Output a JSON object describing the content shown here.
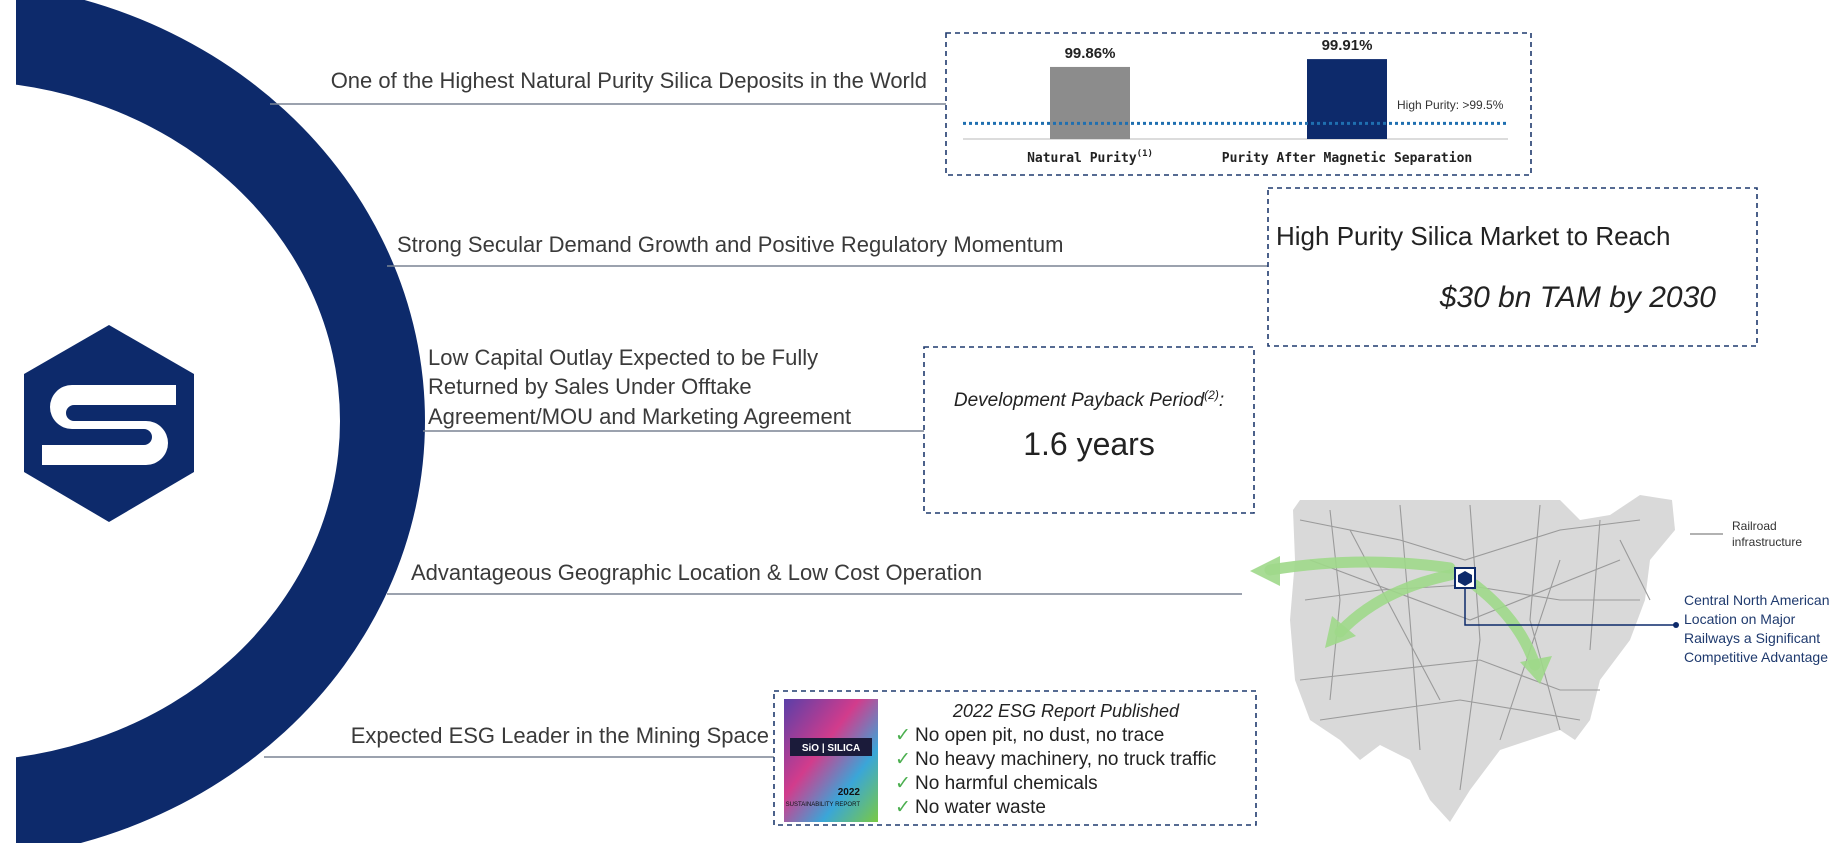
{
  "items": [
    {
      "text": "One of the Highest Natural Purity Silica Deposits in the World"
    },
    {
      "text": "Strong Secular Demand Growth and Positive Regulatory Momentum"
    },
    {
      "lines": [
        "Low Capital Outlay Expected to be Fully",
        "Returned by Sales Under Offtake",
        "Agreement/MOU and Marketing Agreement"
      ]
    },
    {
      "text": "Advantageous Geographic Location & Low Cost Operation"
    },
    {
      "text": "Expected ESG Leader in the Mining Space"
    }
  ],
  "chart_data": {
    "type": "bar",
    "categories": [
      "Natural Purity",
      "Purity After Magnetic Separation"
    ],
    "footnote_marker": "(1)",
    "values": [
      99.86,
      99.91
    ],
    "value_labels": [
      "99.86%",
      "99.91%"
    ],
    "colors": [
      "#8c8c8c",
      "#0d2a6b"
    ],
    "ylim": [
      99.4,
      100
    ],
    "threshold": {
      "value": 99.5,
      "label": "High Purity: >99.5%",
      "color": "#1f6fb0"
    }
  },
  "tam": {
    "heading": "High Purity Silica Market to Reach",
    "value": "$30 bn TAM by 2030"
  },
  "payback": {
    "label": "Development Payback Period",
    "footnote": "(2)",
    "punctuation": ":",
    "value": "1.6 years"
  },
  "map": {
    "legend": [
      "Railroad",
      "infrastructure"
    ],
    "callout": [
      "Central North American",
      "Location on Major",
      "Railways a Significant",
      "Competitive Advantage"
    ]
  },
  "esg": {
    "cover": {
      "brand": "SiO | SILICA",
      "year": "2022",
      "subtitle": "SUSTAINABILITY REPORT"
    },
    "title": "2022 ESG Report Published",
    "check": "✓",
    "bullets": [
      "No open pit, no dust, no trace",
      "No heavy machinery, no truck traffic",
      "No harmful chemicals",
      "No water waste"
    ]
  }
}
